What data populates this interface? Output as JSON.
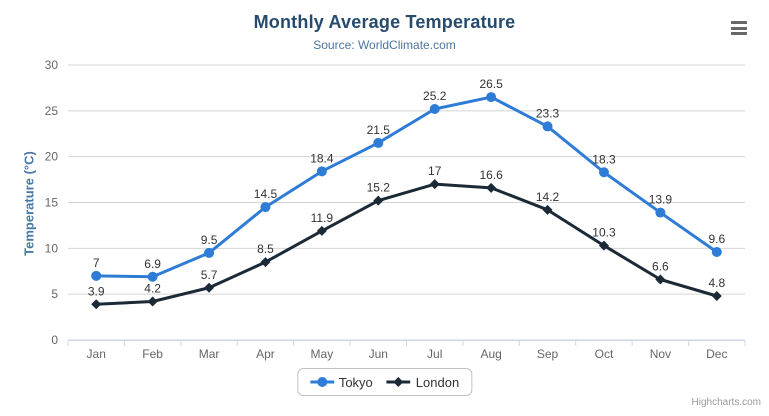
{
  "header": {
    "menu_icon": "hamburger-menu-icon"
  },
  "chart_data": {
    "type": "line",
    "title": "Monthly Average Temperature",
    "subtitle": "Source: WorldClimate.com",
    "categories": [
      "Jan",
      "Feb",
      "Mar",
      "Apr",
      "May",
      "Jun",
      "Jul",
      "Aug",
      "Sep",
      "Oct",
      "Nov",
      "Dec"
    ],
    "series": [
      {
        "name": "Tokyo",
        "color": "#2e7cd6",
        "marker": "circle",
        "values": [
          7,
          6.9,
          9.5,
          14.5,
          18.4,
          21.5,
          25.2,
          26.5,
          23.3,
          18.3,
          13.9,
          9.6
        ]
      },
      {
        "name": "London",
        "color": "#1c2a38",
        "marker": "diamond",
        "values": [
          3.9,
          4.2,
          5.7,
          8.5,
          11.9,
          15.2,
          17,
          16.6,
          14.2,
          10.3,
          6.6,
          4.8
        ]
      }
    ],
    "xlabel": "",
    "ylabel": "Temperature (°C)",
    "ylim": [
      0,
      30
    ],
    "ytick_interval": 5,
    "grid": true,
    "data_labels": true,
    "legend_position": "bottom"
  },
  "colors": {
    "title": "#274b6d",
    "subtitle": "#4d759e",
    "axis_title": "#4a78a8",
    "axis_labels": "#666666",
    "data_labels": "#333333",
    "gridline": "#d4d4d4",
    "axis_line": "#ccd6eb",
    "legend_text": "#333333"
  },
  "credits": {
    "label": "Highcharts.com"
  }
}
